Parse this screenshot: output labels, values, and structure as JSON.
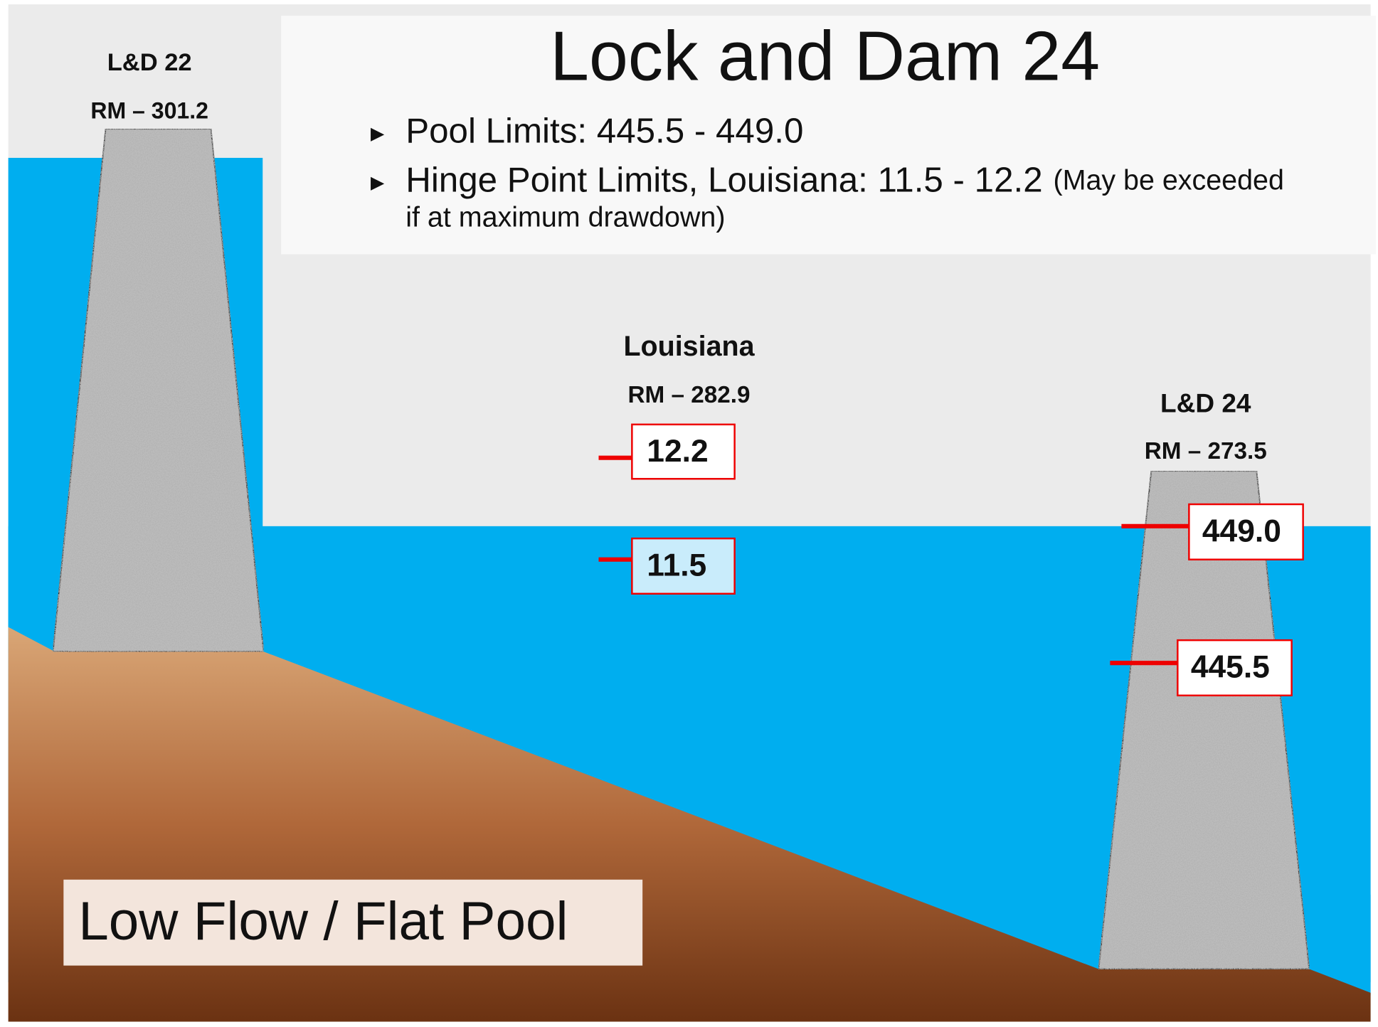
{
  "title": "Lock and Dam 24",
  "bullets": [
    {
      "text": "Pool Limits: 445.5 - 449.0"
    },
    {
      "text": "Hinge Point Limits, Louisiana: 11.5 - 12.2",
      "note": [
        "(May be exceeded",
        "if at maximum drawdown)"
      ]
    }
  ],
  "sites": [
    {
      "name": "L&D 22",
      "rm": "RM – 301.2"
    },
    {
      "name": "Louisiana",
      "rm": "RM – 282.9",
      "gauges": [
        "12.2",
        "11.5"
      ]
    },
    {
      "name": "L&D 24",
      "rm": "RM – 273.5",
      "gauges": [
        "449.0",
        "445.5"
      ]
    }
  ],
  "condition": "Low Flow / Flat Pool"
}
